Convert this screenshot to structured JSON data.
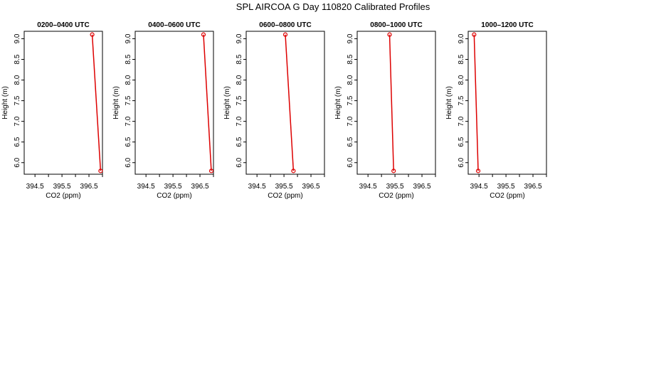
{
  "figure_title": "SPL AIRCOA G  Day 110820  Calibrated Profiles",
  "colors": {
    "line": "#dd0000",
    "axis": "#000000",
    "background": "#ffffff"
  },
  "chart_data": [
    {
      "type": "line",
      "title": "0200–0400 UTC",
      "xlabel": "CO2 (ppm)",
      "ylabel": "Height (m)",
      "xlim": [
        394.1,
        397.0
      ],
      "ylim": [
        5.72,
        9.18
      ],
      "xticks": [
        "394.5",
        "395.5",
        "396.5"
      ],
      "yticks": [
        "6.0",
        "6.5",
        "7.0",
        "7.5",
        "8.0",
        "8.5",
        "9.0"
      ],
      "grid": false,
      "series": [
        {
          "x": [
            396.62,
            396.93
          ],
          "y": [
            9.1,
            5.8
          ]
        }
      ]
    },
    {
      "type": "line",
      "title": "0400–0600 UTC",
      "xlabel": "CO2 (ppm)",
      "ylabel": "Height (m)",
      "xlim": [
        394.1,
        397.0
      ],
      "ylim": [
        5.72,
        9.18
      ],
      "xticks": [
        "394.5",
        "395.5",
        "396.5"
      ],
      "yticks": [
        "6.0",
        "6.5",
        "7.0",
        "7.5",
        "8.0",
        "8.5",
        "9.0"
      ],
      "grid": false,
      "series": [
        {
          "x": [
            396.63,
            396.92
          ],
          "y": [
            9.1,
            5.8
          ]
        }
      ]
    },
    {
      "type": "line",
      "title": "0600–0800 UTC",
      "xlabel": "CO2 (ppm)",
      "ylabel": "Height (m)",
      "xlim": [
        394.1,
        397.0
      ],
      "ylim": [
        5.72,
        9.18
      ],
      "xticks": [
        "394.5",
        "395.5",
        "396.5"
      ],
      "yticks": [
        "6.0",
        "6.5",
        "7.0",
        "7.5",
        "8.0",
        "8.5",
        "9.0"
      ],
      "grid": false,
      "series": [
        {
          "x": [
            395.55,
            395.85
          ],
          "y": [
            9.1,
            5.8
          ]
        }
      ]
    },
    {
      "type": "line",
      "title": "0800–1000 UTC",
      "xlabel": "CO2 (ppm)",
      "ylabel": "Height (m)",
      "xlim": [
        394.1,
        397.0
      ],
      "ylim": [
        5.72,
        9.18
      ],
      "xticks": [
        "394.5",
        "395.5",
        "396.5"
      ],
      "yticks": [
        "6.0",
        "6.5",
        "7.0",
        "7.5",
        "8.0",
        "8.5",
        "9.0"
      ],
      "grid": false,
      "series": [
        {
          "x": [
            395.3,
            395.45
          ],
          "y": [
            9.1,
            5.8
          ]
        }
      ]
    },
    {
      "type": "line",
      "title": "1000–1200 UTC",
      "xlabel": "CO2 (ppm)",
      "ylabel": "Height (m)",
      "xlim": [
        394.1,
        397.0
      ],
      "ylim": [
        5.72,
        9.18
      ],
      "xticks": [
        "394.5",
        "395.5",
        "396.5"
      ],
      "yticks": [
        "6.0",
        "6.5",
        "7.0",
        "7.5",
        "8.0",
        "8.5",
        "9.0"
      ],
      "grid": false,
      "series": [
        {
          "x": [
            394.32,
            394.47
          ],
          "y": [
            9.1,
            5.8
          ]
        }
      ]
    }
  ]
}
